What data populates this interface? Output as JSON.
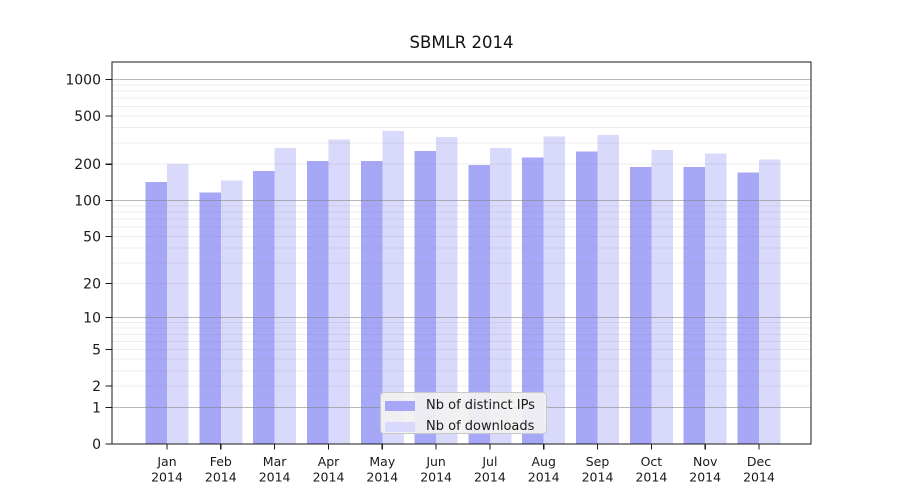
{
  "title": "SBMLR 2014",
  "chart_data": {
    "type": "bar",
    "title": "SBMLR 2014",
    "categories": [
      "Jan",
      "Feb",
      "Mar",
      "Apr",
      "May",
      "Jun",
      "Jul",
      "Aug",
      "Sep",
      "Oct",
      "Nov",
      "Dec"
    ],
    "category_year": "2014",
    "series": [
      {
        "name": "Nb of distinct IPs",
        "color": "#a7a7f8",
        "values": [
          142,
          117,
          176,
          213,
          213,
          258,
          196,
          228,
          255,
          190,
          190,
          170
        ]
      },
      {
        "name": "Nb of downloads",
        "color": "#d9d9fb",
        "values": [
          200,
          146,
          271,
          321,
          376,
          335,
          271,
          337,
          348,
          261,
          245,
          219
        ]
      }
    ],
    "xlabel": "",
    "ylabel": "",
    "y_axis": {
      "scale": "log10(1+x)",
      "tick_values": [
        0,
        1,
        2,
        5,
        10,
        20,
        50,
        100,
        200,
        500,
        1000
      ],
      "range": [
        0,
        1400
      ],
      "grid": true,
      "grid_major_values": [
        1,
        10,
        100,
        1000
      ],
      "grid_minor_multiples": [
        2,
        3,
        4,
        5,
        6,
        7,
        8,
        9
      ]
    },
    "legend": {
      "position": "inside-bottom-center",
      "items": [
        "Nb of distinct IPs",
        "Nb of downloads"
      ]
    },
    "colors": {
      "bar_ips": "#a7a7f8",
      "bar_downloads": "#d9d9fb",
      "axis": "#1a1a1a",
      "grid": "#808080",
      "legend_bg": "#f1f1f1",
      "legend_border": "#c9c9c9",
      "text": "#1a1a1a"
    }
  }
}
